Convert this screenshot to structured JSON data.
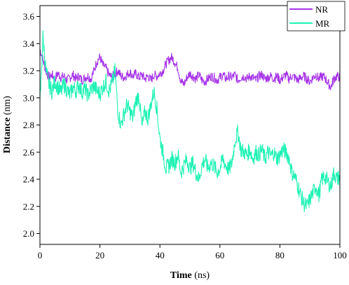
{
  "chart_data": {
    "type": "line",
    "title": "",
    "xlabel_bold": "Time",
    "xlabel_unit": "(ns)",
    "ylabel_bold": "Distance",
    "ylabel_unit": "(nm)",
    "xlim": [
      0,
      100
    ],
    "ylim": [
      1.92,
      3.68
    ],
    "xticks": [
      0,
      20,
      40,
      60,
      80,
      100
    ],
    "yticks": [
      2.0,
      2.2,
      2.4,
      2.6,
      2.8,
      3.0,
      3.2,
      3.4,
      3.6
    ],
    "xtick_labels": [
      "0",
      "20",
      "40",
      "60",
      "80",
      "100"
    ],
    "ytick_labels": [
      "2.0",
      "2.2",
      "2.4",
      "2.6",
      "2.8",
      "3.0",
      "3.2",
      "3.4",
      "3.6"
    ],
    "grid": false,
    "legend_position": "top-right",
    "series": [
      {
        "name": "NR",
        "color": "#a633e8",
        "x": [
          0,
          1,
          2,
          3,
          4,
          5,
          6,
          7,
          8,
          9,
          10,
          11,
          12,
          13,
          14,
          15,
          16,
          17,
          18,
          19,
          20,
          21,
          22,
          23,
          24,
          25,
          26,
          27,
          28,
          29,
          30,
          31,
          32,
          33,
          34,
          35,
          36,
          37,
          38,
          39,
          40,
          41,
          42,
          43,
          44,
          45,
          46,
          47,
          48,
          49,
          50,
          51,
          52,
          53,
          54,
          55,
          56,
          57,
          58,
          59,
          60,
          61,
          62,
          63,
          64,
          65,
          66,
          67,
          68,
          69,
          70,
          71,
          72,
          73,
          74,
          75,
          76,
          77,
          78,
          79,
          80,
          81,
          82,
          83,
          84,
          85,
          86,
          87,
          88,
          89,
          90,
          91,
          92,
          93,
          94,
          95,
          96,
          97,
          98,
          99,
          100
        ],
        "y": [
          3.36,
          3.28,
          3.2,
          3.15,
          3.17,
          3.14,
          3.18,
          3.15,
          3.16,
          3.13,
          3.15,
          3.17,
          3.14,
          3.16,
          3.13,
          3.15,
          3.16,
          3.14,
          3.2,
          3.27,
          3.3,
          3.24,
          3.22,
          3.17,
          3.15,
          3.18,
          3.2,
          3.16,
          3.15,
          3.17,
          3.19,
          3.16,
          3.18,
          3.15,
          3.17,
          3.14,
          3.16,
          3.13,
          3.17,
          3.16,
          3.18,
          3.2,
          3.25,
          3.28,
          3.3,
          3.26,
          3.22,
          3.12,
          3.1,
          3.15,
          3.18,
          3.16,
          3.14,
          3.17,
          3.13,
          3.12,
          3.14,
          3.16,
          3.15,
          3.13,
          3.15,
          3.17,
          3.14,
          3.16,
          3.15,
          3.17,
          3.13,
          3.15,
          3.16,
          3.14,
          3.16,
          3.15,
          3.13,
          3.16,
          3.17,
          3.14,
          3.15,
          3.16,
          3.14,
          3.16,
          3.13,
          3.15,
          3.17,
          3.14,
          3.16,
          3.15,
          3.13,
          3.15,
          3.16,
          3.14,
          3.12,
          3.15,
          3.17,
          3.14,
          3.16,
          3.15,
          3.11,
          3.08,
          3.14,
          3.16,
          3.15
        ]
      },
      {
        "name": "MR",
        "color": "#1ef2b4",
        "x": [
          0,
          1,
          2,
          3,
          4,
          5,
          6,
          7,
          8,
          9,
          10,
          11,
          12,
          13,
          14,
          15,
          16,
          17,
          18,
          19,
          20,
          21,
          22,
          23,
          24,
          25,
          26,
          27,
          28,
          29,
          30,
          31,
          32,
          33,
          34,
          35,
          36,
          37,
          38,
          39,
          40,
          41,
          42,
          43,
          44,
          45,
          46,
          47,
          48,
          49,
          50,
          51,
          52,
          53,
          54,
          55,
          56,
          57,
          58,
          59,
          60,
          61,
          62,
          63,
          64,
          65,
          66,
          67,
          68,
          69,
          70,
          71,
          72,
          73,
          74,
          75,
          76,
          77,
          78,
          79,
          80,
          81,
          82,
          83,
          84,
          85,
          86,
          87,
          88,
          89,
          90,
          91,
          92,
          93,
          94,
          95,
          96,
          97,
          98,
          99,
          100
        ],
        "y": [
          2.95,
          3.45,
          3.2,
          3.1,
          3.05,
          3.12,
          3.08,
          3.04,
          3.1,
          3.06,
          3.02,
          3.08,
          3.05,
          3.1,
          3.04,
          3.07,
          3.02,
          3.06,
          3.09,
          3.05,
          3.03,
          3.08,
          3.12,
          3.05,
          3.1,
          3.2,
          2.9,
          2.8,
          2.88,
          2.95,
          2.9,
          2.85,
          2.98,
          3.02,
          2.78,
          2.9,
          2.85,
          2.95,
          3.05,
          2.92,
          2.7,
          2.6,
          2.48,
          2.5,
          2.55,
          2.52,
          2.58,
          2.45,
          2.5,
          2.55,
          2.48,
          2.52,
          2.45,
          2.4,
          2.5,
          2.55,
          2.48,
          2.52,
          2.5,
          2.45,
          2.48,
          2.55,
          2.5,
          2.47,
          2.52,
          2.68,
          2.75,
          2.62,
          2.6,
          2.58,
          2.62,
          2.55,
          2.6,
          2.58,
          2.62,
          2.55,
          2.6,
          2.57,
          2.6,
          2.55,
          2.58,
          2.62,
          2.6,
          2.56,
          2.45,
          2.42,
          2.35,
          2.28,
          2.22,
          2.2,
          2.25,
          2.3,
          2.35,
          2.28,
          2.4,
          2.42,
          2.38,
          2.35,
          2.45,
          2.4,
          2.42
        ]
      }
    ]
  }
}
